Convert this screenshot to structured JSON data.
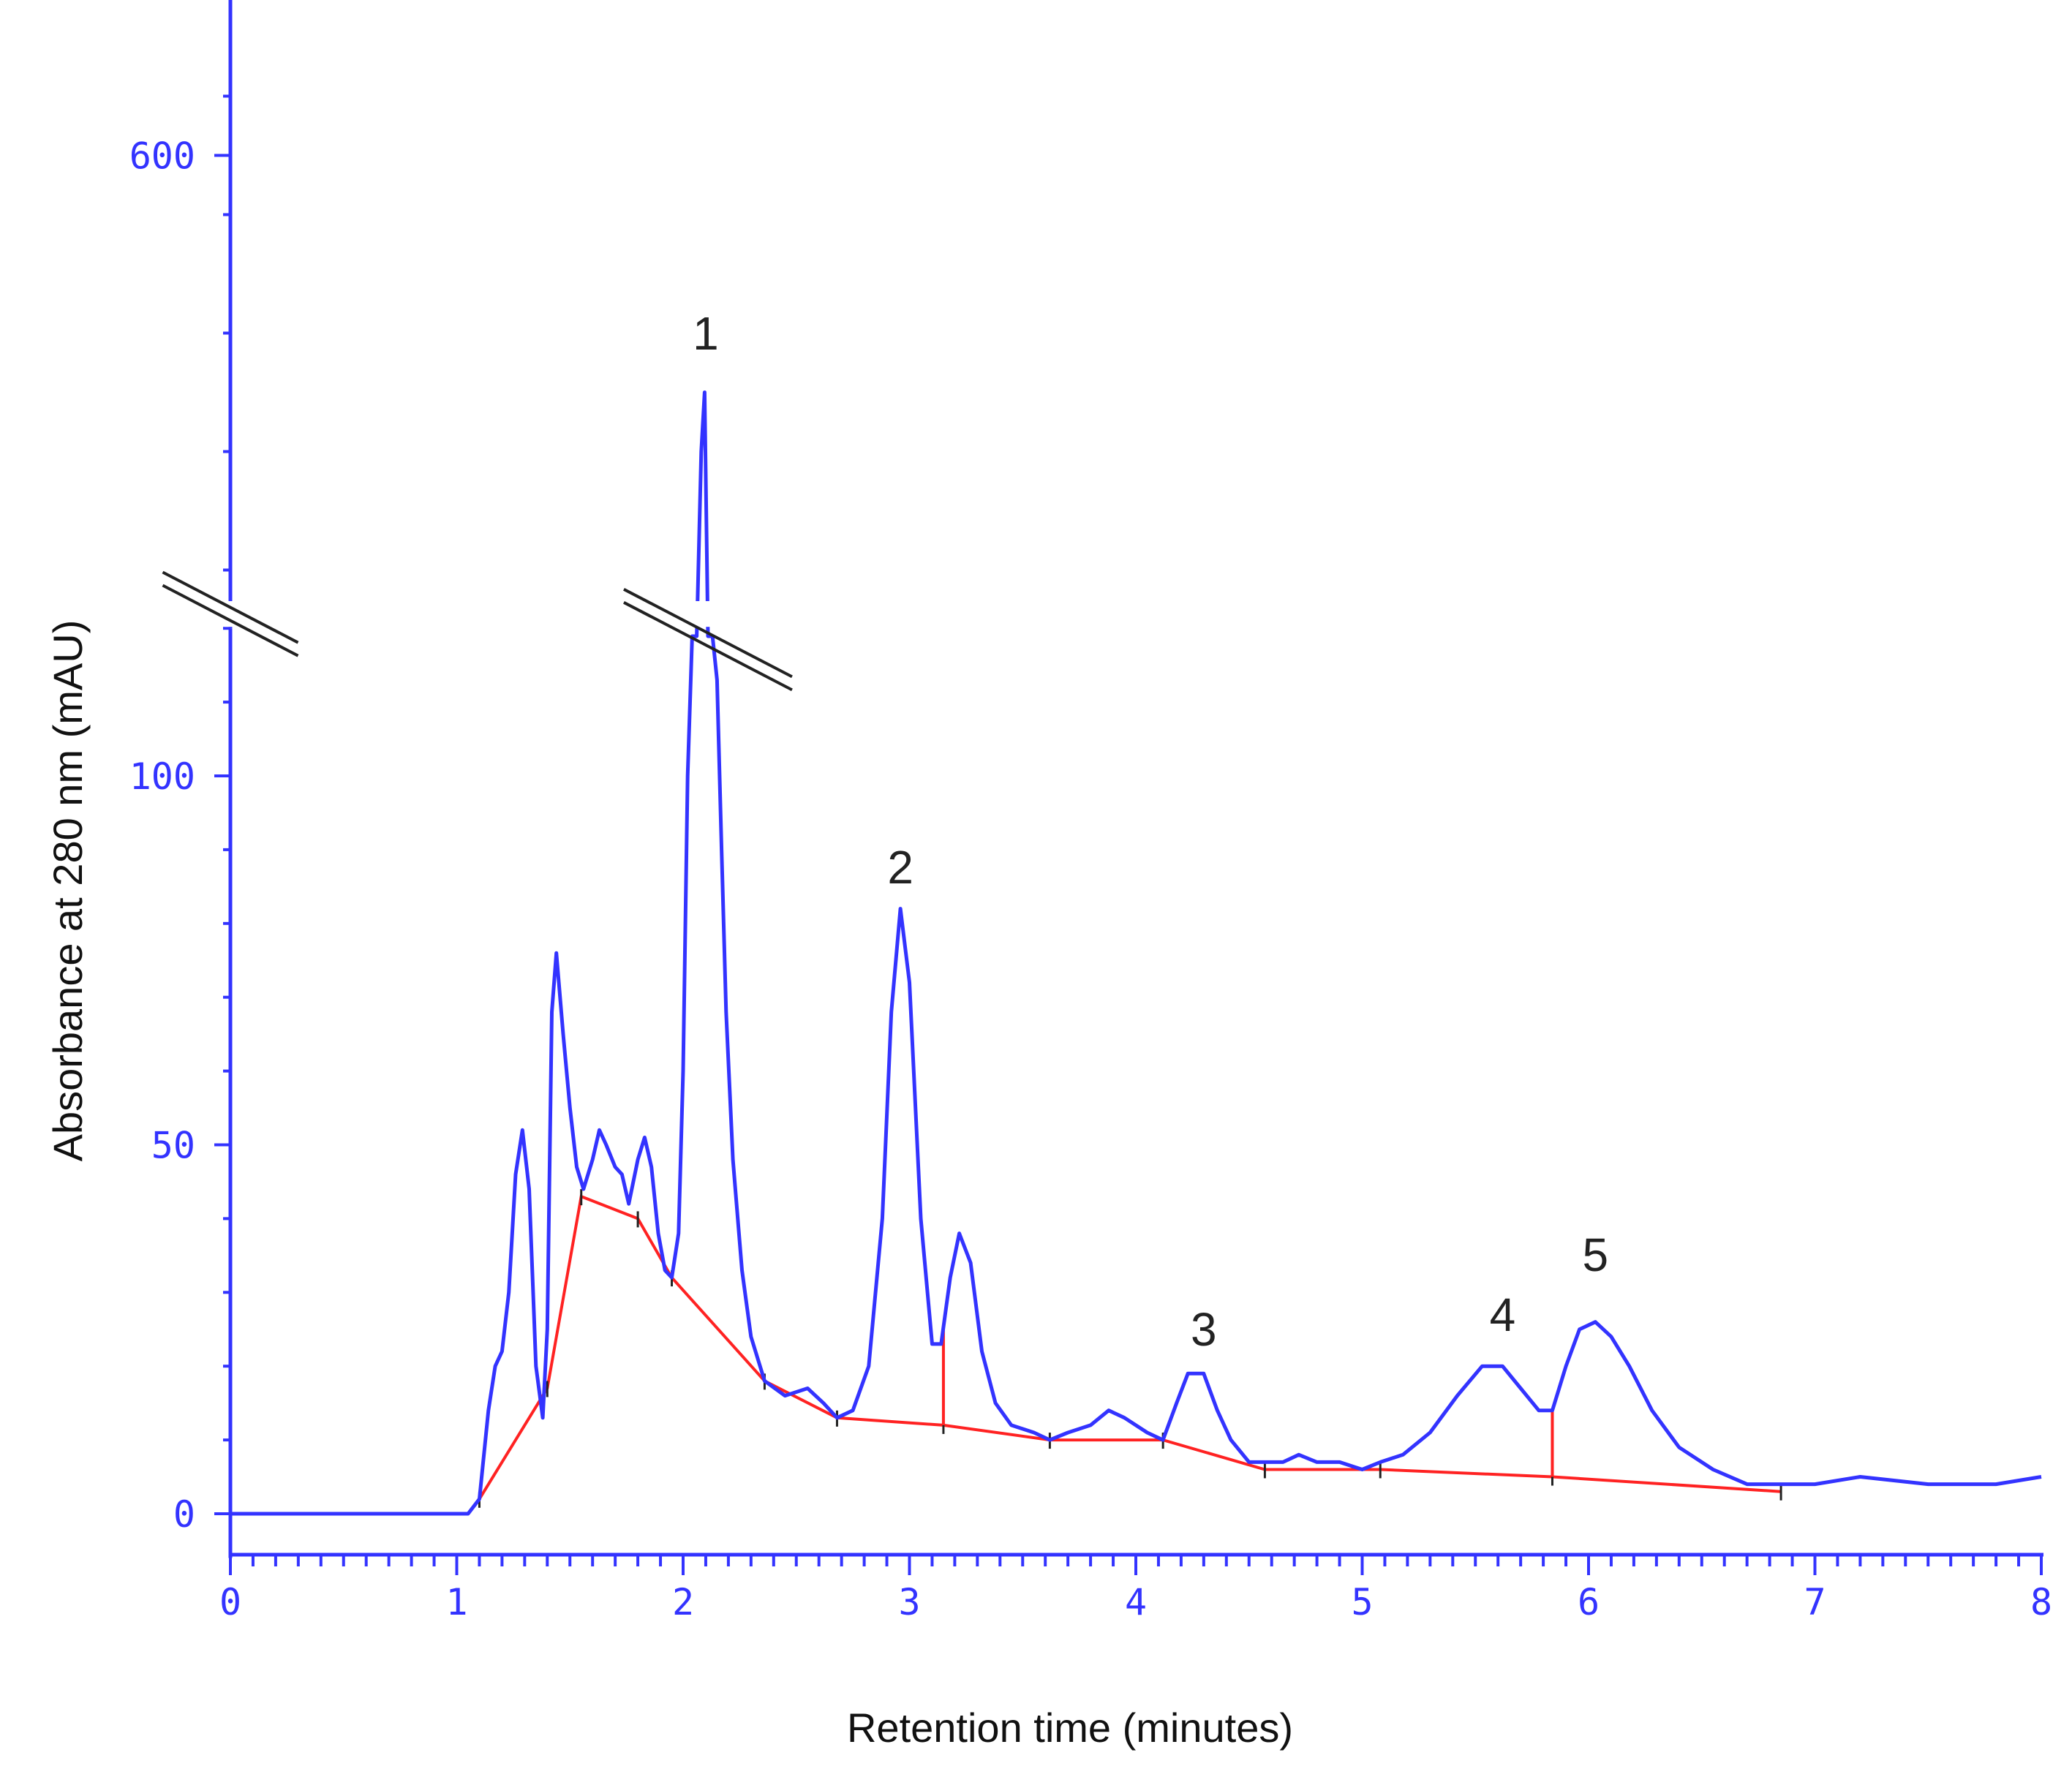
{
  "chart_data": {
    "type": "line",
    "title": "",
    "xlabel": "Retention time (minutes)",
    "ylabel": "Absorbance at 280 nm (mAU)",
    "xlim": [
      0,
      8
    ],
    "ylim": [
      -6,
      695
    ],
    "y_axis_break": {
      "lower_max": 120,
      "upper_min": 525
    },
    "x_ticks": [
      0,
      1,
      2,
      3,
      4,
      5,
      6,
      7,
      8
    ],
    "y_ticks": [
      0,
      50,
      100,
      600
    ],
    "grid": false,
    "colors": {
      "axis": "#3333ff",
      "signal": "#3333ff",
      "baseline": "#ff2222",
      "break_mark": "#222222"
    },
    "series": [
      {
        "x": [
          0,
          1.05,
          1.1,
          1.14,
          1.17,
          1.2,
          1.23,
          1.26,
          1.29,
          1.32,
          1.35,
          1.38,
          1.4,
          1.42,
          1.44,
          1.47,
          1.5,
          1.53,
          1.56,
          1.6,
          1.63,
          1.66,
          1.7,
          1.73,
          1.76,
          1.8,
          1.83,
          1.86,
          1.89,
          1.92,
          1.95,
          1.98,
          2.0,
          2.02,
          2.04,
          2.06,
          2.08,
          2.095,
          2.11,
          2.13,
          2.15,
          2.17,
          2.19,
          2.22,
          2.26,
          2.3,
          2.36,
          2.45,
          2.55,
          2.62,
          2.68,
          2.75,
          2.82,
          2.88,
          2.92,
          2.96,
          3.0,
          3.05,
          3.1,
          3.14,
          3.18,
          3.22,
          3.27,
          3.32,
          3.38,
          3.45,
          3.55,
          3.62,
          3.7,
          3.8,
          3.88,
          3.95,
          4.05,
          4.12,
          4.18,
          4.23,
          4.3,
          4.36,
          4.42,
          4.5,
          4.57,
          4.65,
          4.72,
          4.8,
          4.9,
          5.0,
          5.08,
          5.18,
          5.3,
          5.42,
          5.53,
          5.62,
          5.7,
          5.78,
          5.84,
          5.9,
          5.96,
          6.03,
          6.1,
          6.18,
          6.28,
          6.4,
          6.55,
          6.7,
          6.85,
          7.0,
          7.2,
          7.5,
          7.8,
          8.0
        ],
        "values": [
          0,
          0,
          2,
          14,
          20,
          22,
          30,
          46,
          52,
          44,
          20,
          13,
          25,
          68,
          76,
          65,
          55,
          47,
          44,
          48,
          52,
          50,
          47,
          46,
          42,
          48,
          51,
          47,
          38,
          33,
          32,
          38,
          60,
          100,
          160,
          400,
          550,
          560,
          440,
          160,
          113,
          90,
          68,
          48,
          33,
          24,
          18,
          16,
          17,
          15,
          13,
          14,
          20,
          40,
          68,
          82,
          72,
          40,
          23,
          23,
          32,
          38,
          34,
          22,
          15,
          12,
          11,
          10,
          11,
          12,
          14,
          13,
          11,
          10,
          15,
          19,
          19,
          14,
          10,
          7,
          7,
          7,
          8,
          7,
          7,
          6,
          7,
          8,
          11,
          16,
          20,
          20,
          17,
          14,
          14,
          20,
          25,
          26,
          24,
          20,
          14,
          9,
          6,
          4,
          4,
          4,
          5,
          4,
          4,
          5
        ]
      },
      {
        "x": [
          1.1,
          1.4,
          1.55,
          1.8,
          1.95,
          2.36,
          2.68,
          3.15,
          3.62,
          4.12,
          4.57,
          5.08,
          5.84,
          6.85
        ],
        "values": [
          2,
          17,
          43,
          40,
          32,
          18,
          13,
          12,
          10,
          10,
          6,
          6,
          5,
          3
        ]
      }
    ],
    "annotations": [
      {
        "text": "1",
        "x": 2.1
      },
      {
        "text": "2",
        "x": 2.96
      },
      {
        "text": "3",
        "x": 4.3
      },
      {
        "text": "4",
        "x": 5.62
      },
      {
        "text": "5",
        "x": 6.03
      }
    ],
    "drop_lines": [
      3.15,
      5.84
    ]
  }
}
